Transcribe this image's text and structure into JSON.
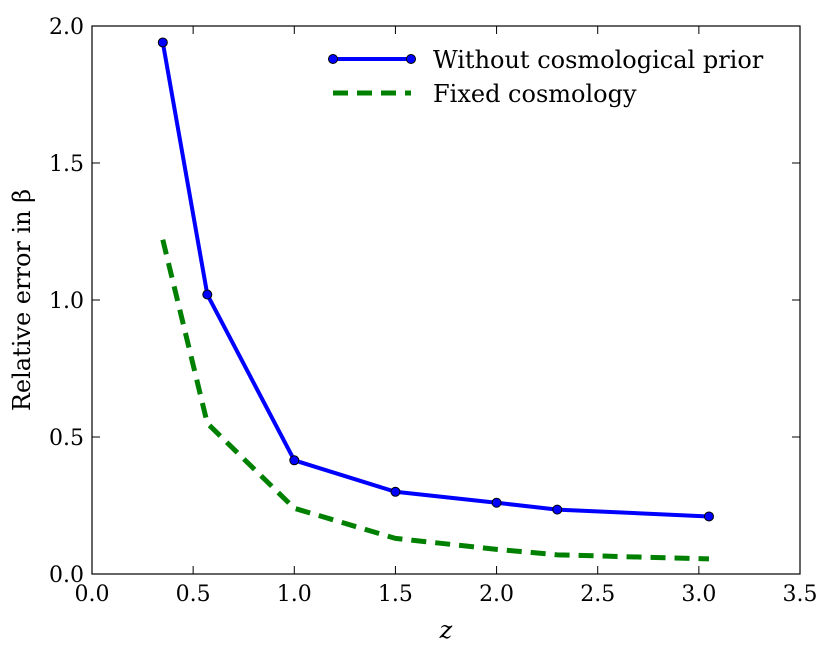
{
  "chart_data": {
    "type": "line",
    "xlabel": "z",
    "ylabel": "Relative error in β",
    "xlim": [
      0.0,
      3.5
    ],
    "ylim": [
      0.0,
      2.0
    ],
    "xticks": [
      "0.0",
      "0.5",
      "1.0",
      "1.5",
      "2.0",
      "2.5",
      "3.0",
      "3.5"
    ],
    "yticks": [
      "0.0",
      "0.5",
      "1.0",
      "1.5",
      "2.0"
    ],
    "grid": false,
    "legend_position": "top-right",
    "series": [
      {
        "name": "Without cosmological prior",
        "color": "#0000ff",
        "style": "solid-markers",
        "x": [
          0.35,
          0.57,
          1.0,
          1.5,
          2.0,
          2.3,
          3.05
        ],
        "y": [
          1.94,
          1.02,
          0.415,
          0.3,
          0.26,
          0.235,
          0.21
        ]
      },
      {
        "name": "Fixed cosmology",
        "color": "#008000",
        "style": "dashed",
        "x": [
          0.35,
          0.57,
          1.0,
          1.5,
          2.0,
          2.3,
          3.05
        ],
        "y": [
          1.22,
          0.55,
          0.24,
          0.13,
          0.09,
          0.07,
          0.055
        ]
      }
    ]
  }
}
